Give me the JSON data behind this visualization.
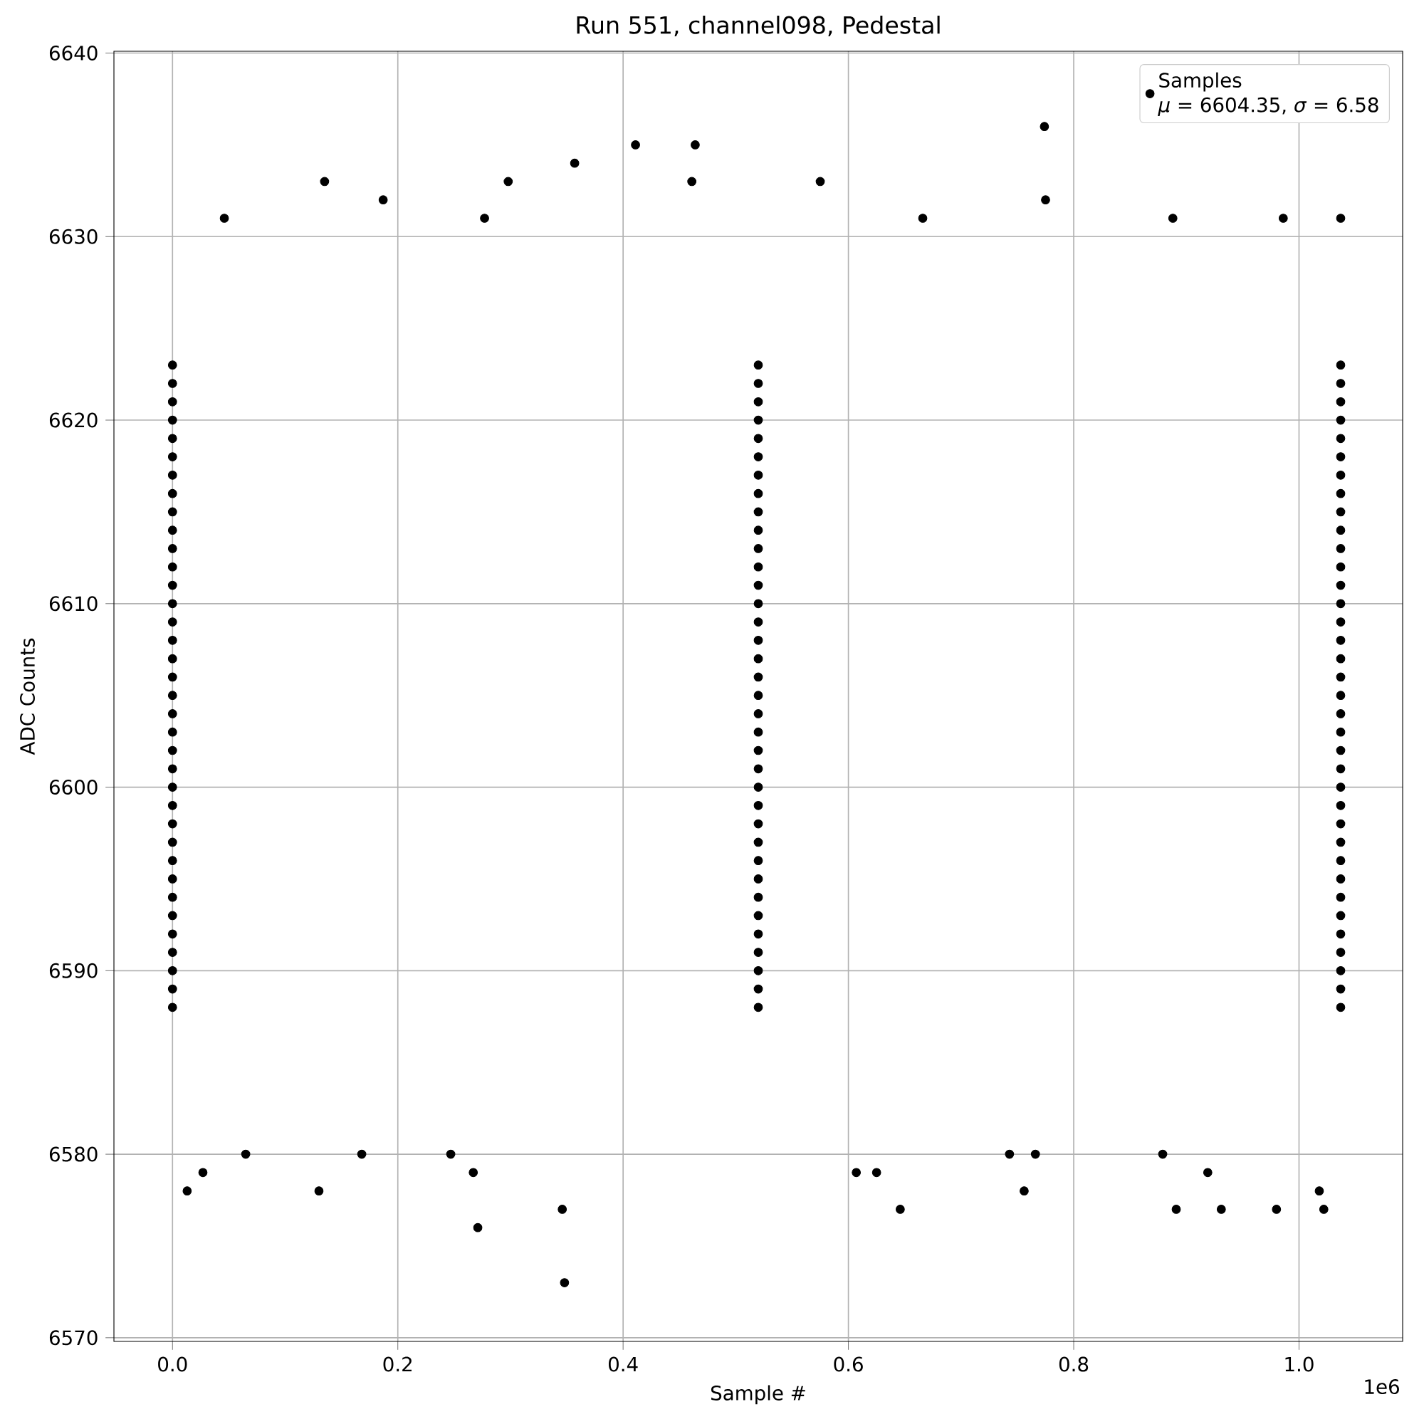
{
  "chart_data": {
    "type": "scatter",
    "title": "Run 551, channel098, Pedestal",
    "xlabel": "Sample #",
    "ylabel": "ADC Counts",
    "annotations": [
      "*μ* = 6604.35, *σ* = 6.58",
      "1e6"
    ],
    "xlim": [
      -0.052,
      1.092
    ],
    "ylim": [
      6569.8,
      6640.1
    ],
    "xticks": [
      {
        "value": 0,
        "label": "0.0"
      },
      {
        "value": 0.2,
        "label": "0.2"
      },
      {
        "value": 0.4,
        "label": "0.4"
      },
      {
        "value": 0.6,
        "label": "0.6"
      },
      {
        "value": 0.8,
        "label": "0.8"
      },
      {
        "value": 1.0,
        "label": "1.0"
      }
    ],
    "yticks": [
      6570,
      6580,
      6590,
      6600,
      6610,
      6620,
      6630,
      6640
    ],
    "grid": true,
    "legend": "top right",
    "series": [
      {
        "name": "Samples",
        "color": "#000000",
        "x": [
          0,
          0.52,
          1.037,
          0,
          0.52,
          1.037,
          0,
          0.52,
          1.037,
          0,
          0.52,
          1.037,
          0,
          0.52,
          1.037,
          0,
          0.52,
          1.037,
          0,
          0.52,
          1.037,
          0,
          0.52,
          1.037,
          0,
          0.52,
          1.037,
          0,
          0.52,
          1.037,
          0,
          0.52,
          1.037,
          0,
          0.52,
          1.037,
          0,
          0.52,
          1.037,
          0,
          0.52,
          1.037,
          0,
          0.52,
          1.037,
          0,
          0.52,
          1.037,
          0,
          0.52,
          1.037,
          0,
          0.52,
          1.037,
          0,
          0.52,
          1.037,
          0,
          0.52,
          1.037,
          0,
          0.52,
          1.037,
          0,
          0.52,
          1.037,
          0,
          0.52,
          1.037,
          0,
          0.52,
          1.037,
          0,
          0.52,
          1.037,
          0,
          0.52,
          1.037,
          0,
          0.52,
          1.037,
          0,
          0.52,
          1.037,
          0,
          0.52,
          1.037,
          0,
          0.52,
          1.037,
          0,
          0.52,
          1.037,
          0,
          0.52,
          1.037,
          0,
          0.52,
          1.037,
          0,
          0.52,
          1.037,
          0,
          0.52,
          1.037,
          0,
          0.52,
          1.037,
          0.774,
          0.411,
          0.464,
          0.357,
          0.135,
          0.298,
          0.461,
          0.575,
          0.187,
          0.775,
          1.037,
          0.986,
          0.888,
          0.666,
          0.277,
          0.046,
          0.348,
          0.271,
          0.013,
          0.13,
          0.027,
          0.267,
          0.346,
          0.646,
          0.891,
          0.931,
          1.022,
          0.98,
          0.756,
          1.018,
          0.607,
          0.625,
          0.919,
          0.065,
          0.168,
          0.247,
          0.743,
          0.766,
          0.879
        ],
        "values": [
          6588,
          6588,
          6588,
          6589,
          6589,
          6589,
          6590,
          6590,
          6590,
          6591,
          6591,
          6591,
          6592,
          6592,
          6592,
          6593,
          6593,
          6593,
          6594,
          6594,
          6594,
          6595,
          6595,
          6595,
          6596,
          6596,
          6596,
          6597,
          6597,
          6597,
          6598,
          6598,
          6598,
          6599,
          6599,
          6599,
          6600,
          6600,
          6600,
          6601,
          6601,
          6601,
          6602,
          6602,
          6602,
          6603,
          6603,
          6603,
          6604,
          6604,
          6604,
          6605,
          6605,
          6605,
          6606,
          6606,
          6606,
          6607,
          6607,
          6607,
          6608,
          6608,
          6608,
          6609,
          6609,
          6609,
          6610,
          6610,
          6610,
          6611,
          6611,
          6611,
          6612,
          6612,
          6612,
          6613,
          6613,
          6613,
          6614,
          6614,
          6614,
          6615,
          6615,
          6615,
          6616,
          6616,
          6616,
          6617,
          6617,
          6617,
          6618,
          6618,
          6618,
          6619,
          6619,
          6619,
          6620,
          6620,
          6620,
          6621,
          6621,
          6621,
          6622,
          6622,
          6622,
          6623,
          6623,
          6623,
          6636,
          6635,
          6635,
          6634,
          6633,
          6633,
          6633,
          6633,
          6632,
          6632,
          6631,
          6631,
          6631,
          6631,
          6631,
          6631,
          6573,
          6576,
          6578,
          6578,
          6579,
          6579,
          6577,
          6577,
          6577,
          6577,
          6577,
          6577,
          6578,
          6578,
          6579,
          6579,
          6579,
          6580,
          6580,
          6580,
          6580,
          6580,
          6580
        ]
      }
    ]
  }
}
